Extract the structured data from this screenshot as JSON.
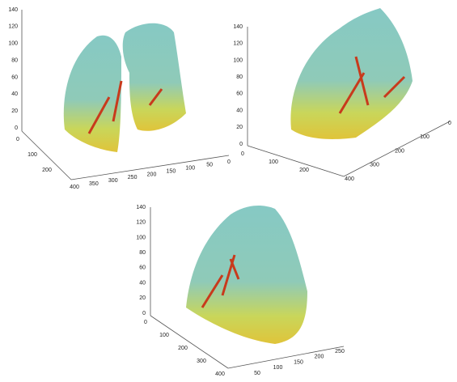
{
  "panels": [
    {
      "zticks": [
        0,
        20,
        40,
        60,
        80,
        100,
        120,
        140
      ],
      "axis_a": [
        0,
        100,
        200
      ],
      "axis_b": [
        400,
        350,
        300,
        250,
        200,
        150,
        100,
        50,
        0
      ]
    },
    {
      "zticks": [
        0,
        20,
        40,
        60,
        80,
        100,
        120,
        140
      ],
      "axis_a": [
        0,
        100,
        200
      ],
      "axis_b": [
        400,
        300,
        200,
        100,
        0
      ]
    },
    {
      "zticks": [
        0,
        20,
        40,
        60,
        80,
        100,
        120,
        140
      ],
      "axis_a": [
        0,
        100,
        200,
        300,
        400
      ],
      "axis_b": [
        50,
        100,
        150,
        200,
        250
      ]
    }
  ]
}
